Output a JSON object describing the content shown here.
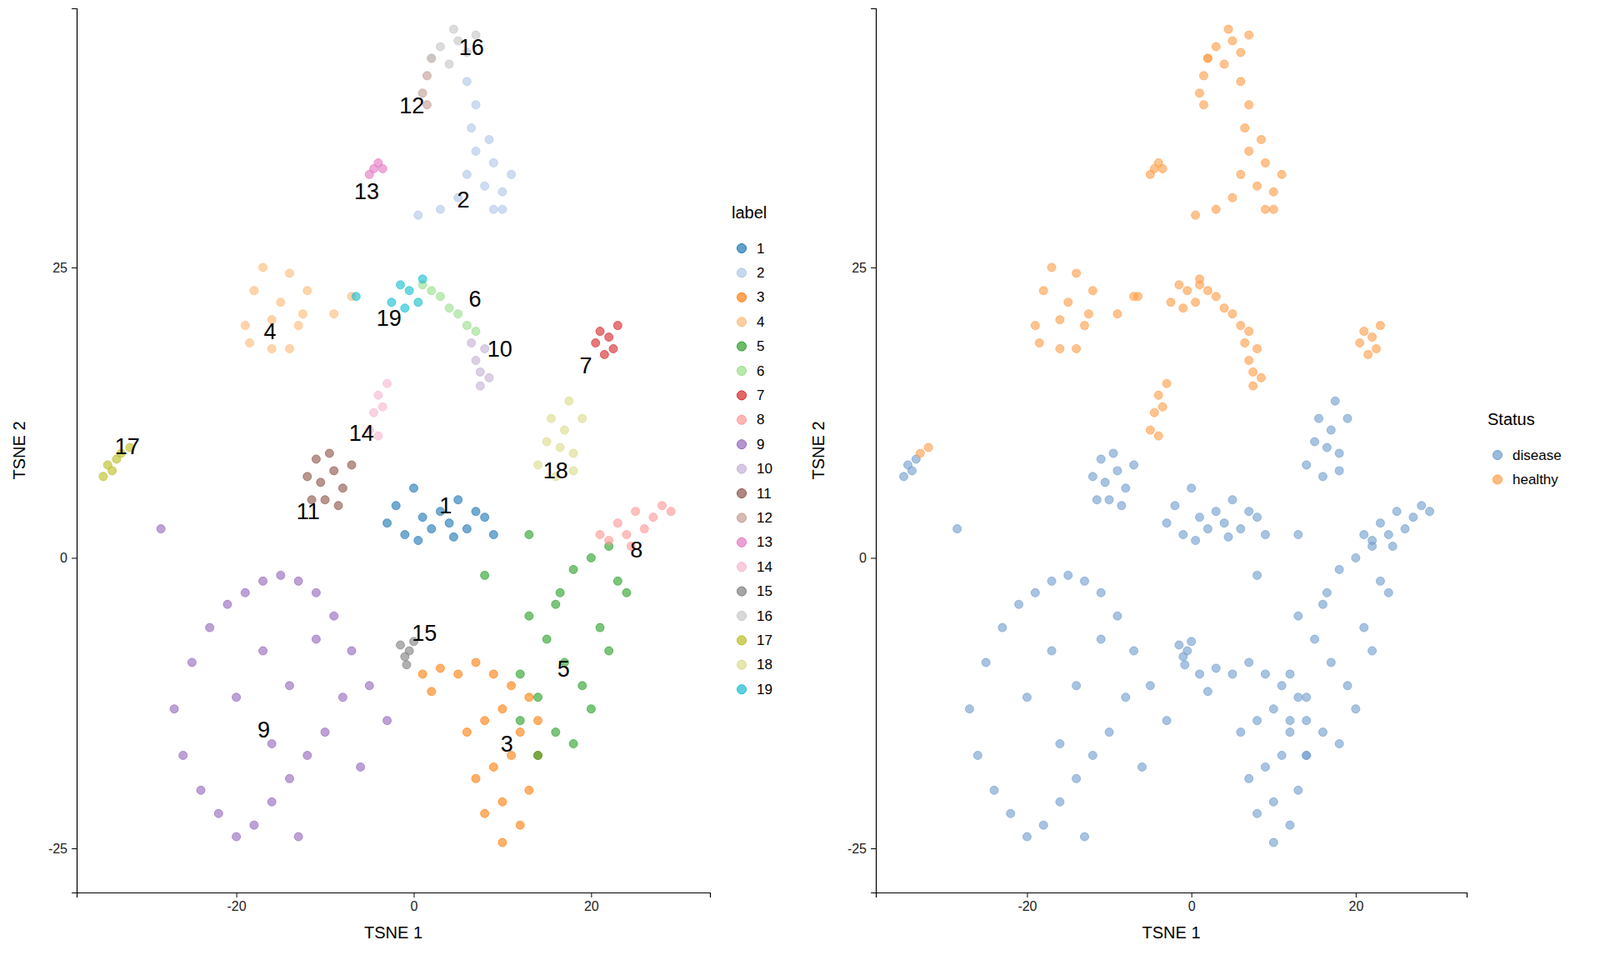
{
  "chart_data": [
    {
      "type": "scatter",
      "xlabel": "TSNE 1",
      "ylabel": "TSNE 2",
      "legend_title": "label",
      "legend": "right",
      "xlim": [
        -38,
        33.4
      ],
      "ylim": [
        -28.8,
        47.3
      ],
      "xticks": [
        -20,
        0,
        20
      ],
      "yticks": [
        -25,
        0,
        25
      ],
      "series": [
        {
          "name": "1",
          "color": "#1f77b4",
          "x": [
            -3,
            -2,
            -1,
            0,
            1,
            2,
            3,
            4,
            5,
            6,
            7,
            8,
            9,
            0.5,
            4.5
          ],
          "y": [
            3,
            4.5,
            2,
            6,
            3.5,
            2.5,
            4,
            3,
            5,
            2.5,
            4,
            3.5,
            2,
            1.5,
            1.8
          ]
        },
        {
          "name": "2",
          "color": "#aec7e8",
          "x": [
            5,
            6,
            7,
            8,
            9,
            10,
            11,
            6.5,
            8.5,
            10,
            7,
            9,
            6,
            3,
            0.5
          ],
          "y": [
            31,
            33,
            35,
            32,
            34,
            31.5,
            33,
            37,
            36,
            30,
            39,
            30,
            41,
            30,
            29.5
          ]
        },
        {
          "name": "3",
          "color": "#ff7f0e",
          "x": [
            5,
            7,
            9,
            11,
            13,
            14,
            6,
            8,
            10,
            12,
            14,
            7,
            9,
            11,
            13,
            8,
            10,
            12,
            10,
            3,
            1,
            2
          ],
          "y": [
            -10,
            -9,
            -10,
            -11,
            -12,
            -14,
            -15,
            -14,
            -13,
            -15,
            -17,
            -19,
            -18,
            -17,
            -20,
            -22,
            -21,
            -23,
            -24.5,
            -9.5,
            -10,
            -11.5
          ]
        },
        {
          "name": "4",
          "color": "#ffbb78",
          "x": [
            -19,
            -18,
            -17,
            -16,
            -15,
            -14,
            -13,
            -12,
            -18.5,
            -16,
            -14,
            -12.5,
            -9,
            -7
          ],
          "y": [
            20,
            23,
            25,
            18,
            22,
            24.5,
            20,
            23,
            18.5,
            20.5,
            18,
            21,
            21,
            22.5
          ]
        },
        {
          "name": "5",
          "color": "#2ca02c",
          "x": [
            12,
            14,
            16,
            18,
            20,
            22,
            24,
            13,
            15,
            17,
            19,
            21,
            23,
            12,
            14,
            16,
            18,
            20,
            22,
            16.5,
            8,
            13
          ],
          "y": [
            -10,
            -12,
            -15,
            -16,
            -13,
            -8,
            -3,
            -5,
            -7,
            -9,
            -11,
            -6,
            -2,
            -14,
            -17,
            -4,
            -1,
            0,
            1,
            -3,
            -1.5,
            2
          ]
        },
        {
          "name": "6",
          "color": "#98df8a",
          "x": [
            1,
            2,
            3,
            4,
            5,
            6,
            7
          ],
          "y": [
            23.5,
            23,
            22.5,
            21.5,
            21,
            20,
            19.5
          ]
        },
        {
          "name": "7",
          "color": "#d62728",
          "x": [
            20.5,
            21,
            21.5,
            22,
            22.5,
            23
          ],
          "y": [
            18.5,
            19.5,
            17.5,
            19,
            18,
            20
          ]
        },
        {
          "name": "8",
          "color": "#ff9896",
          "x": [
            21,
            22,
            23,
            24,
            25,
            26,
            27,
            28,
            29,
            24.5
          ],
          "y": [
            2,
            1.5,
            3,
            2,
            4,
            2.5,
            3.5,
            4.5,
            4,
            1
          ]
        },
        {
          "name": "9",
          "color": "#9467bd",
          "x": [
            -27,
            -25,
            -23,
            -21,
            -19,
            -17,
            -15,
            -13,
            -11,
            -9,
            -7,
            -5,
            -3,
            -26,
            -24,
            -22,
            -20,
            -18,
            -16,
            -14,
            -12,
            -10,
            -8,
            -6,
            -20,
            -17,
            -14,
            -11,
            -16,
            -13,
            -28.5
          ],
          "y": [
            -13,
            -9,
            -6,
            -4,
            -3,
            -2,
            -1.5,
            -2,
            -3,
            -5,
            -8,
            -11,
            -14,
            -17,
            -20,
            -22,
            -24,
            -23,
            -21,
            -19,
            -17,
            -15,
            -12,
            -18,
            -12,
            -8,
            -11,
            -7,
            -16,
            -24,
            2.5
          ]
        },
        {
          "name": "10",
          "color": "#c5b0d5",
          "x": [
            6.5,
            7,
            7.5,
            8,
            8.5,
            7.5
          ],
          "y": [
            18.5,
            17,
            16,
            18,
            15.5,
            14.8
          ]
        },
        {
          "name": "11",
          "color": "#8c564b",
          "x": [
            -12,
            -11,
            -10,
            -9,
            -8,
            -7,
            -11.5,
            -9.5,
            -8.5,
            -10.5
          ],
          "y": [
            7,
            8.5,
            5,
            7.5,
            6,
            8,
            5,
            9,
            4.5,
            6.5
          ]
        },
        {
          "name": "12",
          "color": "#c49c94",
          "x": [
            1,
            1.5,
            2,
            1.5
          ],
          "y": [
            40,
            41.5,
            43,
            39
          ]
        },
        {
          "name": "13",
          "color": "#e377c2",
          "x": [
            -5,
            -4.5,
            -4,
            -3.5
          ],
          "y": [
            33,
            33.5,
            34,
            33.5
          ]
        },
        {
          "name": "14",
          "color": "#f7b6d2",
          "x": [
            -5,
            -4.5,
            -4,
            -3.5,
            -4,
            -3
          ],
          "y": [
            11,
            12.5,
            14,
            13,
            10.5,
            15
          ]
        },
        {
          "name": "15",
          "color": "#7f7f7f",
          "x": [
            -1.5,
            -1,
            -0.5,
            0,
            -0.8
          ],
          "y": [
            -7.5,
            -8.5,
            -8,
            -7.2,
            -9.2
          ]
        },
        {
          "name": "16",
          "color": "#c7c7c7",
          "x": [
            2,
            3,
            4,
            5,
            6,
            7,
            4.5
          ],
          "y": [
            43,
            44,
            42.5,
            44.5,
            43.5,
            45,
            45.5
          ]
        },
        {
          "name": "17",
          "color": "#bcbd22",
          "x": [
            -35,
            -34.5,
            -34,
            -33.5,
            -33,
            -32
          ],
          "y": [
            7,
            8,
            7.5,
            8.5,
            9,
            9.5
          ]
        },
        {
          "name": "18",
          "color": "#dbdb8d",
          "x": [
            14,
            15,
            16,
            17,
            18,
            19,
            15.5,
            17.5,
            16.5,
            18
          ],
          "y": [
            8,
            10,
            7,
            11,
            9,
            12,
            12,
            13.5,
            9.5,
            7.5
          ]
        },
        {
          "name": "19",
          "color": "#17becf",
          "x": [
            -2.5,
            -1.5,
            -0.5,
            0.5,
            1,
            -1,
            -6.5
          ],
          "y": [
            22,
            23.5,
            23,
            22,
            24,
            21.5,
            22.5
          ]
        }
      ],
      "annotations": [
        {
          "text": "16",
          "x": 6.5,
          "y": 43.9
        },
        {
          "text": "12",
          "x": -0.2,
          "y": 38.9
        },
        {
          "text": "13",
          "x": -5.3,
          "y": 31.5
        },
        {
          "text": "2",
          "x": 5.6,
          "y": 30.8
        },
        {
          "text": "4",
          "x": -16.2,
          "y": 19.5
        },
        {
          "text": "19",
          "x": -2.8,
          "y": 20.6
        },
        {
          "text": "6",
          "x": 6.9,
          "y": 22.3
        },
        {
          "text": "10",
          "x": 9.7,
          "y": 18.0
        },
        {
          "text": "7",
          "x": 19.4,
          "y": 16.5
        },
        {
          "text": "17",
          "x": -32.3,
          "y": 9.6
        },
        {
          "text": "14",
          "x": -5.9,
          "y": 10.7
        },
        {
          "text": "11",
          "x": -11.9,
          "y": 4.0
        },
        {
          "text": "18",
          "x": 16.0,
          "y": 7.5
        },
        {
          "text": "1",
          "x": 3.6,
          "y": 4.5
        },
        {
          "text": "8",
          "x": 25.1,
          "y": 0.7
        },
        {
          "text": "15",
          "x": 1.2,
          "y": -6.5
        },
        {
          "text": "5",
          "x": 16.9,
          "y": -9.6
        },
        {
          "text": "9",
          "x": -16.9,
          "y": -14.8
        },
        {
          "text": "3",
          "x": 10.5,
          "y": -16.0
        }
      ]
    },
    {
      "type": "scatter",
      "xlabel": "TSNE 1",
      "ylabel": "TSNE 2",
      "legend_title": "Status",
      "legend": "right",
      "xlim": [
        -38.4,
        33.5
      ],
      "ylim": [
        -28.8,
        47.3
      ],
      "xticks": [
        -20,
        0,
        20
      ],
      "yticks": [
        -25,
        0,
        25
      ],
      "series": [
        {
          "name": "disease",
          "color": "#729ece",
          "x": [
            -3,
            -2,
            -1,
            0,
            1,
            2,
            3,
            4,
            5,
            6,
            7,
            8,
            9,
            0.5,
            4.5,
            5,
            7,
            9,
            11,
            13,
            14,
            6,
            8,
            10,
            12,
            14,
            7,
            9,
            11,
            13,
            8,
            10,
            12,
            10,
            3,
            1,
            2,
            12,
            14,
            16,
            18,
            20,
            22,
            24,
            13,
            15,
            17,
            19,
            21,
            23,
            12,
            14,
            16,
            18,
            20,
            22,
            16.5,
            8,
            13,
            21,
            22,
            23,
            24,
            25,
            26,
            27,
            28,
            29,
            24.5,
            -27,
            -25,
            -23,
            -21,
            -19,
            -17,
            -15,
            -13,
            -11,
            -9,
            -7,
            -5,
            -3,
            -26,
            -24,
            -22,
            -20,
            -18,
            -16,
            -14,
            -12,
            -10,
            -8,
            -6,
            -20,
            -17,
            -14,
            -11,
            -16,
            -13,
            -28.5,
            -12,
            -11,
            -10,
            -9,
            -8,
            -7,
            -11.5,
            -9.5,
            -8.5,
            -10.5,
            -1.5,
            -1,
            -0.5,
            0,
            -0.8,
            -35,
            -34.5,
            -34,
            -33.5,
            14,
            15,
            16,
            17,
            18,
            19,
            15.5,
            17.5,
            16.5,
            18
          ],
          "y": [
            3,
            4.5,
            2,
            6,
            3.5,
            2.5,
            4,
            3,
            5,
            2.5,
            4,
            3.5,
            2,
            1.5,
            1.8,
            -10,
            -9,
            -10,
            -11,
            -12,
            -14,
            -15,
            -14,
            -13,
            -15,
            -17,
            -19,
            -18,
            -17,
            -20,
            -22,
            -21,
            -23,
            -24.5,
            -9.5,
            -10,
            -11.5,
            -10,
            -12,
            -15,
            -16,
            -13,
            -8,
            -3,
            -5,
            -7,
            -9,
            -11,
            -6,
            -2,
            -14,
            -17,
            -4,
            -1,
            0,
            1,
            -3,
            -1.5,
            2,
            2,
            1.5,
            3,
            2,
            4,
            2.5,
            3.5,
            4.5,
            4,
            1,
            -13,
            -9,
            -6,
            -4,
            -3,
            -2,
            -1.5,
            -2,
            -3,
            -5,
            -8,
            -11,
            -14,
            -17,
            -20,
            -22,
            -24,
            -23,
            -21,
            -19,
            -17,
            -15,
            -12,
            -18,
            -12,
            -8,
            -11,
            -7,
            -16,
            -24,
            2.5,
            7,
            8.5,
            5,
            7.5,
            6,
            8,
            5,
            9,
            4.5,
            6.5,
            -7.5,
            -8.5,
            -8,
            -7.2,
            -9.2,
            7,
            8,
            7.5,
            8.5,
            8,
            10,
            7,
            11,
            9,
            12,
            12,
            13.5,
            9.5,
            7.5
          ]
        },
        {
          "name": "healthy",
          "color": "#ff9e4a",
          "x": [
            5,
            6,
            7,
            8,
            9,
            10,
            11,
            6.5,
            8.5,
            10,
            7,
            9,
            6,
            3,
            0.5,
            -19,
            -18,
            -17,
            -16,
            -15,
            -14,
            -13,
            -12,
            -18.5,
            -16,
            -14,
            -12.5,
            -9,
            -7,
            1,
            2,
            3,
            4,
            5,
            6,
            7,
            20.5,
            21,
            21.5,
            22,
            22.5,
            23,
            6.5,
            7,
            7.5,
            8,
            8.5,
            7.5,
            1,
            1.5,
            2,
            1.5,
            -5,
            -4.5,
            -4,
            -3.5,
            -5,
            -4.5,
            -4,
            -3.5,
            -4,
            -3,
            2,
            3,
            4,
            5,
            6,
            7,
            4.5,
            -33,
            -32,
            -2.5,
            -1.5,
            -0.5,
            0.5,
            1,
            -1,
            -6.5
          ],
          "y": [
            31,
            33,
            35,
            32,
            34,
            31.5,
            33,
            37,
            36,
            30,
            39,
            30,
            41,
            30,
            29.5,
            20,
            23,
            25,
            18,
            22,
            24.5,
            20,
            23,
            18.5,
            20.5,
            18,
            21,
            21,
            22.5,
            23.5,
            23,
            22.5,
            21.5,
            21,
            20,
            19.5,
            18.5,
            19.5,
            17.5,
            19,
            18,
            20,
            18.5,
            17,
            16,
            18,
            15.5,
            14.8,
            40,
            41.5,
            43,
            39,
            33,
            33.5,
            34,
            33.5,
            11,
            12.5,
            14,
            13,
            10.5,
            15,
            43,
            44,
            42.5,
            44.5,
            43.5,
            45,
            45.5,
            9,
            9.5,
            22,
            23.5,
            23,
            22,
            24,
            21.5,
            22.5
          ]
        }
      ]
    }
  ]
}
